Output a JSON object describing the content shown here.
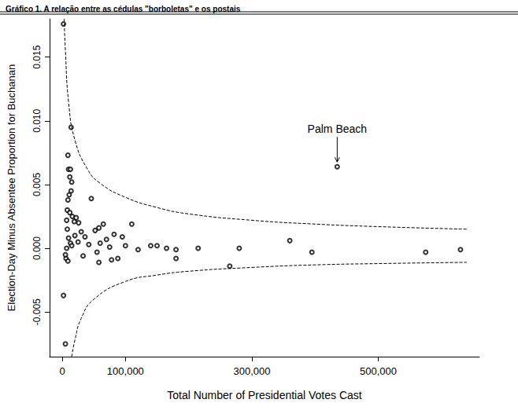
{
  "chart_data": {
    "type": "scatter",
    "title": "Gráfico 1. A relação entre as cédulas \"borboletas\" e os postais",
    "x_label": "Total Number of Presidential Votes Cast",
    "y_label": "Election-Day Minus Absentee Proportion for Buchanan",
    "xlim": [
      -20000,
      660000
    ],
    "ylim": [
      -0.0085,
      0.018
    ],
    "xticks": [
      0,
      {
        "value": 100000,
        "label": "100,000"
      },
      {
        "value": 300000,
        "label": "300,000"
      },
      {
        "value": 500000,
        "label": "500,000"
      }
    ],
    "yticks": [
      -0.005,
      {
        "value": 0,
        "label": "0.000"
      },
      0.005,
      {
        "value": 0.01,
        "label": "0.010"
      },
      0.015
    ],
    "grid": false,
    "series": [
      {
        "type": "scatter",
        "marker": "circle_open",
        "color": "#000000",
        "x": [
          2000,
          14000,
          9000,
          10000,
          13000,
          12000,
          15000,
          14000,
          11000,
          9000,
          46000,
          8000,
          12000,
          16000,
          22000,
          7000,
          19000,
          26000,
          65000,
          58000,
          110000,
          8000,
          30000,
          52000,
          82000,
          95000,
          20000,
          36000,
          10000,
          70000,
          25000,
          13000,
          42000,
          100000,
          140000,
          150000,
          165000,
          180000,
          215000,
          280000,
          360000,
          395000,
          265000,
          180000,
          120000,
          88000,
          78000,
          58000,
          55000,
          33000,
          6000,
          9000,
          5000,
          7000,
          15000,
          60000,
          75000,
          2000,
          5000,
          435000,
          575000,
          630000
        ],
        "values": [
          0.0176,
          0.0095,
          0.0073,
          0.0062,
          0.0062,
          0.0056,
          0.0052,
          0.0045,
          0.0042,
          0.0038,
          0.0039,
          0.003,
          0.0028,
          0.0025,
          0.0024,
          0.0022,
          0.0021,
          0.002,
          0.0019,
          0.0016,
          0.0019,
          0.0015,
          0.0013,
          0.0014,
          0.0011,
          0.0009,
          0.001,
          0.0009,
          0.0008,
          0.0007,
          0.0005,
          0.0004,
          0.0003,
          0.0002,
          0.0002,
          0.0002,
          0.0,
          -0.0001,
          0.0,
          0.0,
          0.0006,
          -0.0003,
          -0.0014,
          -0.0008,
          -0.0001,
          -0.0008,
          -0.0009,
          -0.0011,
          -0.0003,
          -0.0006,
          -0.0008,
          -0.001,
          -0.0005,
          0.0,
          0.0002,
          0.0004,
          0.0001,
          -0.0037,
          -0.0075,
          0.0064,
          -0.0003,
          -0.0001
        ]
      },
      {
        "type": "line",
        "line_style": "dashed",
        "color": "#000000",
        "x": [
          3000,
          5000,
          10000,
          20000,
          40000,
          60000,
          100000,
          150000,
          200000,
          300000,
          400000,
          500000,
          640000
        ],
        "values": [
          0.018,
          0.0155,
          0.0115,
          0.0085,
          0.0062,
          0.0051,
          0.004,
          0.0032,
          0.0027,
          0.0022,
          0.0019,
          0.0017,
          0.0015
        ]
      },
      {
        "type": "line",
        "line_style": "dashed",
        "color": "#000000",
        "x": [
          15000,
          20000,
          30000,
          50000,
          100000,
          150000,
          200000,
          300000,
          400000,
          500000,
          640000
        ],
        "values": [
          -0.0085,
          -0.0072,
          -0.0055,
          -0.004,
          -0.0026,
          -0.0021,
          -0.0018,
          -0.0015,
          -0.0013,
          -0.0012,
          -0.0011
        ]
      }
    ],
    "annotations": [
      {
        "text": "Palm Beach",
        "x": 435000,
        "y": 0.0064
      }
    ]
  }
}
